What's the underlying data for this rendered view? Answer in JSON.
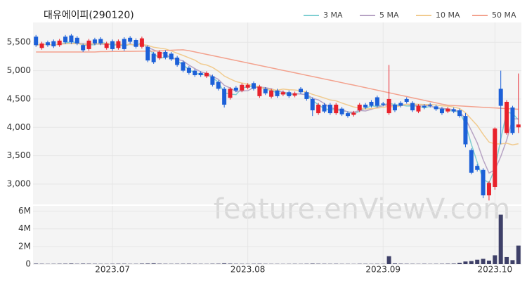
{
  "chart_data": {
    "type": "candlestick",
    "title": "대유에이피(290120)",
    "watermark": "feature.enViewV.com",
    "categories": [
      null,
      null,
      null,
      null,
      null,
      null,
      null,
      null,
      null,
      null,
      null,
      null,
      null,
      "2023.07",
      null,
      null,
      null,
      null,
      null,
      null,
      null,
      null,
      null,
      null,
      null,
      null,
      null,
      null,
      null,
      null,
      null,
      null,
      null,
      null,
      null,
      null,
      "2023.08",
      null,
      null,
      null,
      null,
      null,
      null,
      null,
      null,
      null,
      null,
      null,
      null,
      null,
      null,
      null,
      null,
      null,
      null,
      null,
      null,
      null,
      null,
      "2023.09",
      null,
      null,
      null,
      null,
      null,
      null,
      null,
      null,
      null,
      null,
      null,
      null,
      null,
      null,
      null,
      null,
      null,
      null,
      "2023.10",
      null,
      null,
      null,
      null
    ],
    "open": [
      5600,
      5400,
      5500,
      5520,
      5450,
      5600,
      5620,
      5580,
      5450,
      5380,
      5550,
      5560,
      5400,
      5520,
      5400,
      5560,
      5580,
      5540,
      5420,
      5420,
      5300,
      5220,
      5330,
      5300,
      5230,
      5150,
      5050,
      5000,
      4960,
      4900,
      4900,
      4800,
      4680,
      4520,
      4700,
      4650,
      4700,
      4780,
      4550,
      4680,
      4540,
      4650,
      4580,
      4620,
      4560,
      4680,
      4620,
      4500,
      4250,
      4400,
      4400,
      4250,
      4330,
      4250,
      4220,
      4300,
      4400,
      4450,
      4530,
      4420,
      4250,
      4400,
      4430,
      4500,
      4430,
      4280,
      4380,
      4400,
      4370,
      4330,
      4280,
      4320,
      4300,
      4200,
      3600,
      3320,
      3250,
      2800,
      2950,
      4680,
      3900,
      4350,
      4000
    ],
    "high": [
      5630,
      5510,
      5530,
      5550,
      5560,
      5630,
      5650,
      5610,
      5480,
      5560,
      5580,
      5590,
      5510,
      5550,
      5550,
      5590,
      5610,
      5570,
      5600,
      5450,
      5330,
      5360,
      5360,
      5330,
      5260,
      5180,
      5080,
      5030,
      4990,
      4990,
      4930,
      4830,
      4710,
      4710,
      4730,
      4780,
      4780,
      4810,
      4750,
      4710,
      4680,
      4680,
      4650,
      4650,
      4630,
      4710,
      4650,
      4530,
      4430,
      4430,
      4430,
      4430,
      4360,
      4280,
      4290,
      4430,
      4430,
      4480,
      4560,
      4450,
      5100,
      4430,
      4460,
      4530,
      4460,
      4410,
      4410,
      4430,
      4400,
      4360,
      4360,
      4350,
      4330,
      4250,
      3630,
      3350,
      3280,
      3050,
      4000,
      5000,
      4480,
      4380,
      4950
    ],
    "low": [
      5420,
      5370,
      5420,
      5400,
      5420,
      5470,
      5470,
      5450,
      5330,
      5350,
      5450,
      5450,
      5370,
      5350,
      5370,
      5350,
      5480,
      5390,
      5390,
      5150,
      5120,
      5190,
      5200,
      5170,
      5070,
      4970,
      4930,
      4890,
      4890,
      4870,
      4720,
      4650,
      4350,
      4490,
      4620,
      4620,
      4670,
      4650,
      4520,
      4570,
      4510,
      4520,
      4550,
      4520,
      4530,
      4590,
      4470,
      4200,
      4220,
      4250,
      4220,
      4220,
      4200,
      4170,
      4190,
      4270,
      4320,
      4350,
      4350,
      4370,
      4220,
      4270,
      4350,
      4420,
      4270,
      4250,
      4320,
      4350,
      4290,
      4220,
      4250,
      4250,
      4170,
      3650,
      3170,
      3220,
      2750,
      2710,
      2900,
      3700,
      3870,
      3870,
      3900
    ],
    "close": [
      5450,
      5480,
      5450,
      5430,
      5530,
      5500,
      5500,
      5480,
      5360,
      5530,
      5480,
      5480,
      5480,
      5380,
      5520,
      5380,
      5510,
      5420,
      5570,
      5180,
      5150,
      5330,
      5230,
      5200,
      5100,
      5000,
      4960,
      4920,
      4920,
      4960,
      4750,
      4680,
      4400,
      4680,
      4650,
      4750,
      4750,
      4680,
      4720,
      4600,
      4650,
      4550,
      4620,
      4550,
      4600,
      4620,
      4500,
      4300,
      4400,
      4280,
      4250,
      4400,
      4230,
      4200,
      4260,
      4400,
      4350,
      4380,
      4380,
      4400,
      4500,
      4300,
      4380,
      4450,
      4300,
      4380,
      4350,
      4380,
      4320,
      4250,
      4330,
      4280,
      4200,
      3700,
      3200,
      3250,
      2800,
      3020,
      3980,
      4380,
      4450,
      3900,
      4050
    ],
    "up_color": "#e8222c",
    "down_color": "#1c60d8",
    "ylim": [
      2640,
      5850
    ],
    "yticks": [
      {
        "value": 3000,
        "label": "3,000"
      },
      {
        "value": 3500,
        "label": "3,500"
      },
      {
        "value": 4000,
        "label": "4,000"
      },
      {
        "value": 4500,
        "label": "4,500"
      },
      {
        "value": 5000,
        "label": "5,000"
      },
      {
        "value": 5500,
        "label": "5,500"
      }
    ],
    "grid": true,
    "legend": "top-right",
    "series": [
      {
        "name": "3 MA",
        "color": "#7fcfd2",
        "values": [
          5450,
          5465,
          5460,
          5453,
          5470,
          5487,
          5510,
          5493,
          5447,
          5457,
          5457,
          5497,
          5480,
          5447,
          5460,
          5427,
          5470,
          5437,
          5500,
          5390,
          5300,
          5220,
          5237,
          5253,
          5177,
          5100,
          5020,
          4960,
          4933,
          4933,
          4877,
          4797,
          4610,
          4587,
          4577,
          4693,
          4717,
          4727,
          4717,
          4667,
          4657,
          4600,
          4607,
          4573,
          4590,
          4590,
          4573,
          4473,
          4400,
          4327,
          4310,
          4310,
          4293,
          4277,
          4230,
          4287,
          4337,
          4377,
          4370,
          4387,
          4427,
          4400,
          4393,
          4377,
          4377,
          4377,
          4343,
          4370,
          4350,
          4317,
          4300,
          4287,
          4270,
          4060,
          3700,
          3383,
          3083,
          3023,
          3267,
          3793,
          4270,
          4243,
          4133
        ]
      },
      {
        "name": "5 MA",
        "color": "#b7a3c4",
        "values": [
          5450,
          5465,
          5460,
          5453,
          5468,
          5478,
          5482,
          5488,
          5474,
          5474,
          5470,
          5466,
          5466,
          5470,
          5468,
          5448,
          5474,
          5442,
          5480,
          5412,
          5366,
          5330,
          5292,
          5218,
          5202,
          5172,
          5098,
          5036,
          4980,
          4952,
          4902,
          4846,
          4742,
          4694,
          4632,
          4642,
          4646,
          4702,
          4710,
          4700,
          4680,
          4640,
          4628,
          4594,
          4594,
          4588,
          4578,
          4514,
          4484,
          4420,
          4346,
          4326,
          4312,
          4272,
          4268,
          4298,
          4288,
          4318,
          4354,
          4382,
          4402,
          4372,
          4392,
          4406,
          4386,
          4386,
          4396,
          4372,
          4346,
          4336,
          4326,
          4312,
          4276,
          4152,
          3942,
          3726,
          3430,
          3194,
          3250,
          3486,
          3776,
          4146,
          4152
        ]
      },
      {
        "name": "10 MA",
        "color": "#f1cb8f",
        "values": [
          5450,
          5465,
          5460,
          5453,
          5468,
          5473,
          5477,
          5478,
          5464,
          5471,
          5474,
          5474,
          5477,
          5472,
          5471,
          5459,
          5460,
          5454,
          5463,
          5446,
          5413,
          5398,
          5383,
          5349,
          5307,
          5269,
          5227,
          5186,
          5121,
          5100,
          5057,
          4992,
          4906,
          4854,
          4807,
          4782,
          4761,
          4733,
          4713,
          4677,
          4667,
          4654,
          4676,
          4663,
          4658,
          4645,
          4620,
          4582,
          4550,
          4518,
          4483,
          4468,
          4429,
          4394,
          4360,
          4338,
          4323,
          4331,
          4339,
          4351,
          4374,
          4354,
          4381,
          4406,
          4410,
          4408,
          4403,
          4403,
          4395,
          4380,
          4375,
          4358,
          4333,
          4258,
          4145,
          4032,
          3877,
          3741,
          3707,
          3707,
          3720,
          3690,
          3710
        ]
      },
      {
        "name": "50 MA",
        "color": "#f3a28e",
        "values": [
          5330,
          5330,
          5330,
          5330,
          5330,
          5330,
          5330,
          5330,
          5330,
          5330,
          5330,
          5335,
          5336,
          5338,
          5339,
          5340,
          5341,
          5342,
          5343,
          5344,
          5345,
          5350,
          5355,
          5360,
          5365,
          5368,
          5353,
          5331,
          5309,
          5288,
          5266,
          5244,
          5223,
          5201,
          5179,
          5157,
          5136,
          5114,
          5092,
          5071,
          5049,
          5027,
          5005,
          4984,
          4962,
          4940,
          4918,
          4897,
          4875,
          4853,
          4832,
          4810,
          4788,
          4766,
          4745,
          4723,
          4700,
          4678,
          4656,
          4633,
          4611,
          4588,
          4566,
          4544,
          4521,
          4499,
          4476,
          4454,
          4432,
          4409,
          4390,
          4384,
          4378,
          4372,
          4366,
          4360,
          4354,
          4348,
          4342,
          4336,
          4330,
          4325,
          4320
        ]
      }
    ],
    "volume": {
      "color": "#3e4068",
      "ylim": [
        0,
        6600000
      ],
      "yticks": [
        0,
        {
          "value": 2000000,
          "label": "2M"
        },
        {
          "value": 4000000,
          "label": "4M"
        },
        {
          "value": 6000000,
          "label": "6M"
        }
      ],
      "values": [
        60000,
        40000,
        30000,
        35000,
        45000,
        50000,
        70000,
        40000,
        60000,
        50000,
        40000,
        35000,
        30000,
        40000,
        50000,
        45000,
        30000,
        35000,
        60000,
        70000,
        90000,
        50000,
        40000,
        35000,
        40000,
        45000,
        50000,
        40000,
        35000,
        30000,
        45000,
        50000,
        90000,
        60000,
        40000,
        35000,
        30000,
        40000,
        50000,
        35000,
        30000,
        30000,
        25000,
        30000,
        35000,
        30000,
        40000,
        60000,
        45000,
        40000,
        35000,
        40000,
        30000,
        30000,
        25000,
        40000,
        35000,
        30000,
        35000,
        30000,
        900000,
        80000,
        50000,
        40000,
        35000,
        30000,
        40000,
        30000,
        35000,
        40000,
        50000,
        60000,
        150000,
        300000,
        350000,
        500000,
        600000,
        400000,
        1000000,
        5600000,
        800000,
        450000,
        2100000
      ]
    }
  }
}
